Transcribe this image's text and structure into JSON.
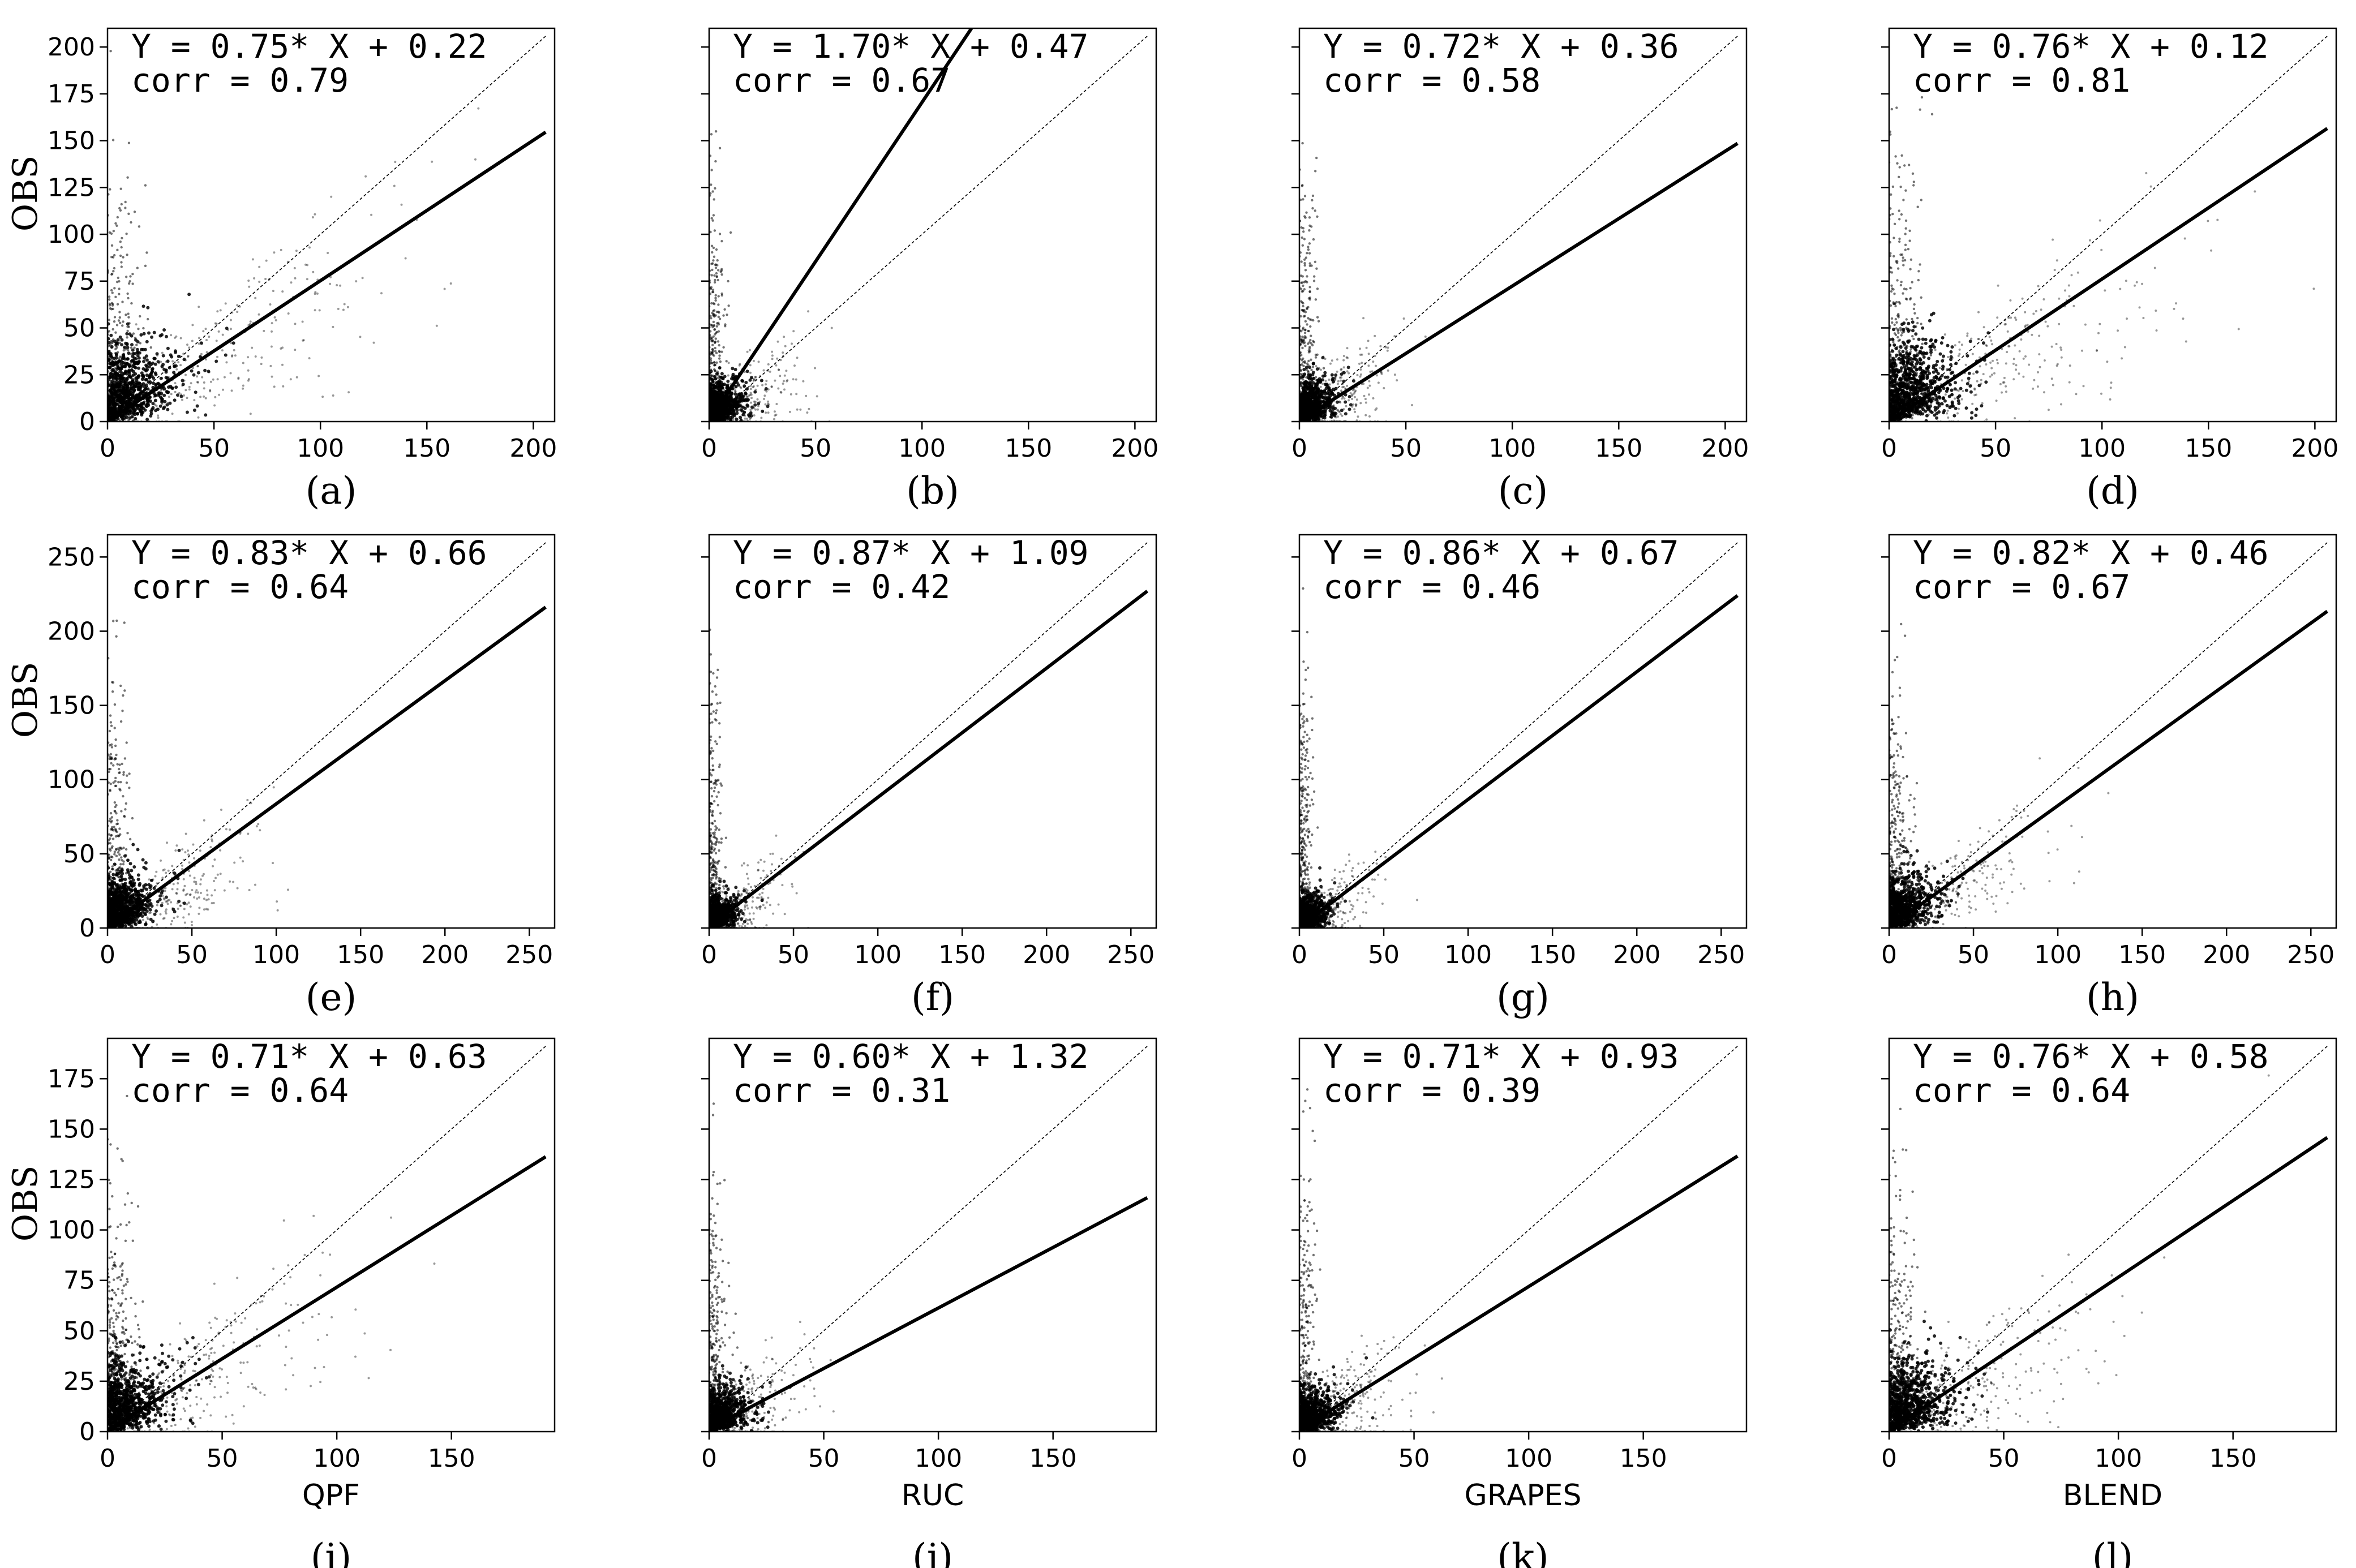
{
  "chart_data": [
    {
      "id": "a",
      "type": "scatter",
      "label": "(a)",
      "panel_letter": "a",
      "xlabel": "",
      "ylabel": "OBS",
      "equation": "Y = 0.75* X + 0.22",
      "corr": "corr = 0.79",
      "slope": 0.75,
      "intercept": 0.22,
      "xlim": [
        0,
        210
      ],
      "ylim": [
        0,
        210
      ],
      "xticks": [
        0,
        50,
        100,
        150,
        200
      ],
      "yticks": [
        0,
        25,
        50,
        75,
        100,
        125,
        150,
        175,
        200
      ],
      "seed": 11,
      "spread": "wide"
    },
    {
      "id": "b",
      "type": "scatter",
      "label": "(b)",
      "panel_letter": "b",
      "xlabel": "",
      "ylabel": "",
      "equation": "Y = 1.70* X + 0.47",
      "corr": "corr = 0.67",
      "slope": 1.7,
      "intercept": 0.47,
      "xlim": [
        0,
        210
      ],
      "ylim": [
        0,
        210
      ],
      "xticks": [
        0,
        50,
        100,
        150,
        200
      ],
      "yticks": [
        0,
        25,
        50,
        75,
        100,
        125,
        150,
        175,
        200
      ],
      "seed": 23,
      "spread": "narrow"
    },
    {
      "id": "c",
      "type": "scatter",
      "label": "(c)",
      "panel_letter": "c",
      "xlabel": "",
      "ylabel": "",
      "equation": "Y = 0.72* X + 0.36",
      "corr": "corr = 0.58",
      "slope": 0.72,
      "intercept": 0.36,
      "xlim": [
        0,
        210
      ],
      "ylim": [
        0,
        210
      ],
      "xticks": [
        0,
        50,
        100,
        150,
        200
      ],
      "yticks": [
        0,
        25,
        50,
        75,
        100,
        125,
        150,
        175,
        200
      ],
      "seed": 37,
      "spread": "narrow"
    },
    {
      "id": "d",
      "type": "scatter",
      "label": "(d)",
      "panel_letter": "d",
      "xlabel": "",
      "ylabel": "",
      "equation": "Y = 0.76* X + 0.12",
      "corr": "corr = 0.81",
      "slope": 0.76,
      "intercept": 0.12,
      "xlim": [
        0,
        210
      ],
      "ylim": [
        0,
        210
      ],
      "xticks": [
        0,
        50,
        100,
        150,
        200
      ],
      "yticks": [
        0,
        25,
        50,
        75,
        100,
        125,
        150,
        175,
        200
      ],
      "seed": 41,
      "spread": "wide"
    },
    {
      "id": "e",
      "type": "scatter",
      "label": "(e)",
      "panel_letter": "e",
      "xlabel": "",
      "ylabel": "OBS",
      "equation": "Y = 0.83* X + 0.66",
      "corr": "corr = 0.64",
      "slope": 0.83,
      "intercept": 0.66,
      "xlim": [
        0,
        265
      ],
      "ylim": [
        0,
        265
      ],
      "xticks": [
        0,
        50,
        100,
        150,
        200,
        250
      ],
      "yticks": [
        0,
        50,
        100,
        150,
        200,
        250
      ],
      "seed": 53,
      "spread": "medium"
    },
    {
      "id": "f",
      "type": "scatter",
      "label": "(f)",
      "panel_letter": "f",
      "xlabel": "",
      "ylabel": "",
      "equation": "Y = 0.87* X + 1.09",
      "corr": "corr = 0.42",
      "slope": 0.87,
      "intercept": 1.09,
      "xlim": [
        0,
        265
      ],
      "ylim": [
        0,
        265
      ],
      "xticks": [
        0,
        50,
        100,
        150,
        200,
        250
      ],
      "yticks": [
        0,
        50,
        100,
        150,
        200,
        250
      ],
      "seed": 67,
      "spread": "narrow"
    },
    {
      "id": "g",
      "type": "scatter",
      "label": "(g)",
      "panel_letter": "g",
      "xlabel": "",
      "ylabel": "",
      "equation": "Y = 0.86* X + 0.67",
      "corr": "corr = 0.46",
      "slope": 0.86,
      "intercept": 0.67,
      "xlim": [
        0,
        265
      ],
      "ylim": [
        0,
        265
      ],
      "xticks": [
        0,
        50,
        100,
        150,
        200,
        250
      ],
      "yticks": [
        0,
        50,
        100,
        150,
        200,
        250
      ],
      "seed": 71,
      "spread": "narrow"
    },
    {
      "id": "h",
      "type": "scatter",
      "label": "(h)",
      "panel_letter": "h",
      "xlabel": "",
      "ylabel": "",
      "equation": "Y = 0.82* X + 0.46",
      "corr": "corr = 0.67",
      "slope": 0.82,
      "intercept": 0.46,
      "xlim": [
        0,
        265
      ],
      "ylim": [
        0,
        265
      ],
      "xticks": [
        0,
        50,
        100,
        150,
        200,
        250
      ],
      "yticks": [
        0,
        50,
        100,
        150,
        200,
        250
      ],
      "seed": 83,
      "spread": "medium"
    },
    {
      "id": "i",
      "type": "scatter",
      "label": "(i)",
      "panel_letter": "i",
      "xlabel": "QPF",
      "ylabel": "OBS",
      "equation": "Y = 0.71* X + 0.63",
      "corr": "corr = 0.64",
      "slope": 0.71,
      "intercept": 0.63,
      "xlim": [
        0,
        195
      ],
      "ylim": [
        0,
        195
      ],
      "xticks": [
        0,
        50,
        100,
        150
      ],
      "yticks": [
        0,
        25,
        50,
        75,
        100,
        125,
        150,
        175
      ],
      "seed": 97,
      "spread": "medium"
    },
    {
      "id": "j",
      "type": "scatter",
      "label": "(j)",
      "panel_letter": "j",
      "xlabel": "RUC",
      "ylabel": "",
      "equation": "Y = 0.60* X + 1.32",
      "corr": "corr = 0.31",
      "slope": 0.6,
      "intercept": 1.32,
      "xlim": [
        0,
        195
      ],
      "ylim": [
        0,
        195
      ],
      "xticks": [
        0,
        50,
        100,
        150
      ],
      "yticks": [
        0,
        25,
        50,
        75,
        100,
        125,
        150,
        175
      ],
      "seed": 101,
      "spread": "narrow"
    },
    {
      "id": "k",
      "type": "scatter",
      "label": "(k)",
      "panel_letter": "k",
      "xlabel": "GRAPES",
      "ylabel": "",
      "equation": "Y = 0.71* X + 0.93",
      "corr": "corr = 0.39",
      "slope": 0.71,
      "intercept": 0.93,
      "xlim": [
        0,
        195
      ],
      "ylim": [
        0,
        195
      ],
      "xticks": [
        0,
        50,
        100,
        150
      ],
      "yticks": [
        0,
        25,
        50,
        75,
        100,
        125,
        150,
        175
      ],
      "seed": 113,
      "spread": "narrow"
    },
    {
      "id": "l",
      "type": "scatter",
      "label": "(l)",
      "panel_letter": "l",
      "xlabel": "BLEND",
      "ylabel": "",
      "equation": "Y = 0.76* X + 0.58",
      "corr": "corr = 0.64",
      "slope": 0.76,
      "intercept": 0.58,
      "xlim": [
        0,
        195
      ],
      "ylim": [
        0,
        195
      ],
      "xticks": [
        0,
        50,
        100,
        150
      ],
      "yticks": [
        0,
        25,
        50,
        75,
        100,
        125,
        150,
        175
      ],
      "seed": 127,
      "spread": "medium"
    }
  ]
}
